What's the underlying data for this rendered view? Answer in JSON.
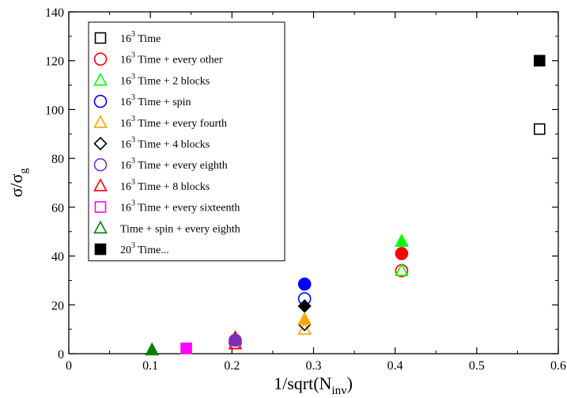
{
  "chart_data": {
    "type": "scatter",
    "xlabel": "1/sqrt(N",
    "xlabel_sub": "inv",
    "xlabel_close": ")",
    "ylabel": "σ/σ",
    "ylabel_sub": "g",
    "xlim": [
      0,
      0.6
    ],
    "ylim": [
      0,
      140
    ],
    "xticks": [
      0,
      0.1,
      0.2,
      0.3,
      0.4,
      0.5,
      0.6
    ],
    "xtick_labels": [
      "0",
      "0.1",
      "0.2",
      "0.3",
      "0.4",
      "0.5",
      "0.6"
    ],
    "yticks": [
      0,
      20,
      40,
      60,
      80,
      100,
      120,
      140
    ],
    "ytick_labels": [
      "0",
      "20",
      "40",
      "60",
      "80",
      "100",
      "120",
      "140"
    ],
    "grid": false,
    "legend_position": "top-left",
    "series": [
      {
        "name": "Time",
        "sup": "3",
        "pre": "16",
        "marker": "square",
        "color": "#000000",
        "filled": false,
        "points": [
          [
            0.577,
            92
          ]
        ]
      },
      {
        "name": "Time + every other",
        "sup": "3",
        "pre": "16",
        "marker": "circle",
        "color": "#ff0000",
        "filled": false,
        "points": [
          [
            0.408,
            34
          ]
        ]
      },
      {
        "name": "Time + 2 blocks",
        "sup": "3",
        "pre": "16",
        "marker": "triangle",
        "color": "#00ff00",
        "filled": false,
        "points": [
          [
            0.408,
            34
          ]
        ]
      },
      {
        "name": "Time + spin",
        "sup": "3",
        "pre": "16",
        "marker": "circle",
        "color": "#0000ff",
        "filled": false,
        "points": [
          [
            0.289,
            22.5
          ]
        ]
      },
      {
        "name": "Time + every fourth",
        "sup": "3",
        "pre": "16",
        "marker": "triangle",
        "color": "#ffa500",
        "filled": false,
        "points": [
          [
            0.289,
            10
          ]
        ]
      },
      {
        "name": "Time + 4 blocks",
        "sup": "3",
        "pre": "16",
        "marker": "diamond",
        "color": "#000000",
        "filled": false,
        "points": [
          [
            0.289,
            12
          ]
        ]
      },
      {
        "name": "Time + every eighth",
        "sup": "3",
        "pre": "16",
        "marker": "circle",
        "color": "#7b2fb8",
        "filled": false,
        "points": [
          [
            0.204,
            4.5
          ]
        ]
      },
      {
        "name": "Time + 8 blocks",
        "sup": "3",
        "pre": "16",
        "marker": "triangle",
        "color": "#ff0000",
        "filled": false,
        "points": [
          [
            0.204,
            4
          ]
        ]
      },
      {
        "name": "Time + every sixteenth",
        "sup": "3",
        "pre": "16",
        "marker": "square",
        "color": "#ff00ff",
        "filled": false,
        "points": []
      },
      {
        "name": "Time + spin + every eighth",
        "sup": "",
        "pre": "",
        "marker": "triangle",
        "color": "#008000",
        "filled": false,
        "points": []
      },
      {
        "name": "Time...",
        "sup": "3",
        "pre": "20",
        "marker": "square",
        "color": "#000000",
        "filled": true,
        "points": [
          [
            0.577,
            120
          ]
        ]
      }
    ],
    "filled_points": [
      {
        "marker": "circle",
        "color": "#ff0000",
        "x": 0.408,
        "y": 41
      },
      {
        "marker": "triangle",
        "color": "#00ff00",
        "x": 0.408,
        "y": 46
      },
      {
        "marker": "circle",
        "color": "#0000ff",
        "x": 0.289,
        "y": 28.5
      },
      {
        "marker": "diamond",
        "color": "#000000",
        "x": 0.289,
        "y": 19.5
      },
      {
        "marker": "triangle",
        "color": "#ffa500",
        "x": 0.289,
        "y": 14
      },
      {
        "marker": "triangle",
        "color": "#ff0000",
        "x": 0.204,
        "y": 6.5
      },
      {
        "marker": "circle",
        "color": "#7b2fb8",
        "x": 0.204,
        "y": 5.5
      },
      {
        "marker": "square",
        "color": "#ff00ff",
        "x": 0.144,
        "y": 2.2
      },
      {
        "marker": "triangle",
        "color": "#008000",
        "x": 0.102,
        "y": 1.5
      }
    ]
  }
}
